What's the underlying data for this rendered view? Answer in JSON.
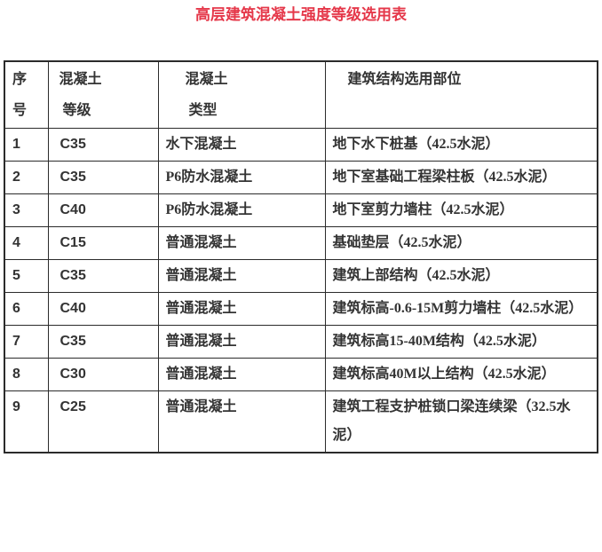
{
  "title": {
    "text": "高层建筑混凝土强度等级选用表",
    "color": "#e5384a"
  },
  "table": {
    "headers": [
      {
        "label": "序\n号"
      },
      {
        "label": "混凝土\n 等级"
      },
      {
        "label": "混凝土\n 类型"
      },
      {
        "label": "建筑结构选用部位"
      }
    ],
    "rows": [
      {
        "no": "1",
        "grade": "C35",
        "type": "水下混凝土",
        "usage": "地下水下桩基（42.5水泥）"
      },
      {
        "no": "2",
        "grade": "C35",
        "type": "P6防水混凝土",
        "usage": "地下室基础工程梁柱板（42.5水泥）"
      },
      {
        "no": "3",
        "grade": "C40",
        "type": "P6防水混凝土",
        "usage": "地下室剪力墙柱（42.5水泥）"
      },
      {
        "no": "4",
        "grade": "C15",
        "type": "普通混凝土",
        "usage": "基础垫层（42.5水泥）"
      },
      {
        "no": "5",
        "grade": "C35",
        "type": "普通混凝土",
        "usage": "建筑上部结构（42.5水泥）"
      },
      {
        "no": "6",
        "grade": "C40",
        "type": "普通混凝土",
        "usage": "建筑标高-0.6-15M剪力墙柱（42.5水泥）"
      },
      {
        "no": "7",
        "grade": "C35",
        "type": "普通混凝土",
        "usage": "建筑标高15-40M结构（42.5水泥）"
      },
      {
        "no": "8",
        "grade": "C30",
        "type": "普通混凝土",
        "usage": "建筑标高40M以上结构（42.5水泥）"
      },
      {
        "no": "9",
        "grade": "C25",
        "type": "普通混凝土",
        "usage": "建筑工程支护桩锁口梁连续梁（32.5水泥）"
      }
    ]
  }
}
